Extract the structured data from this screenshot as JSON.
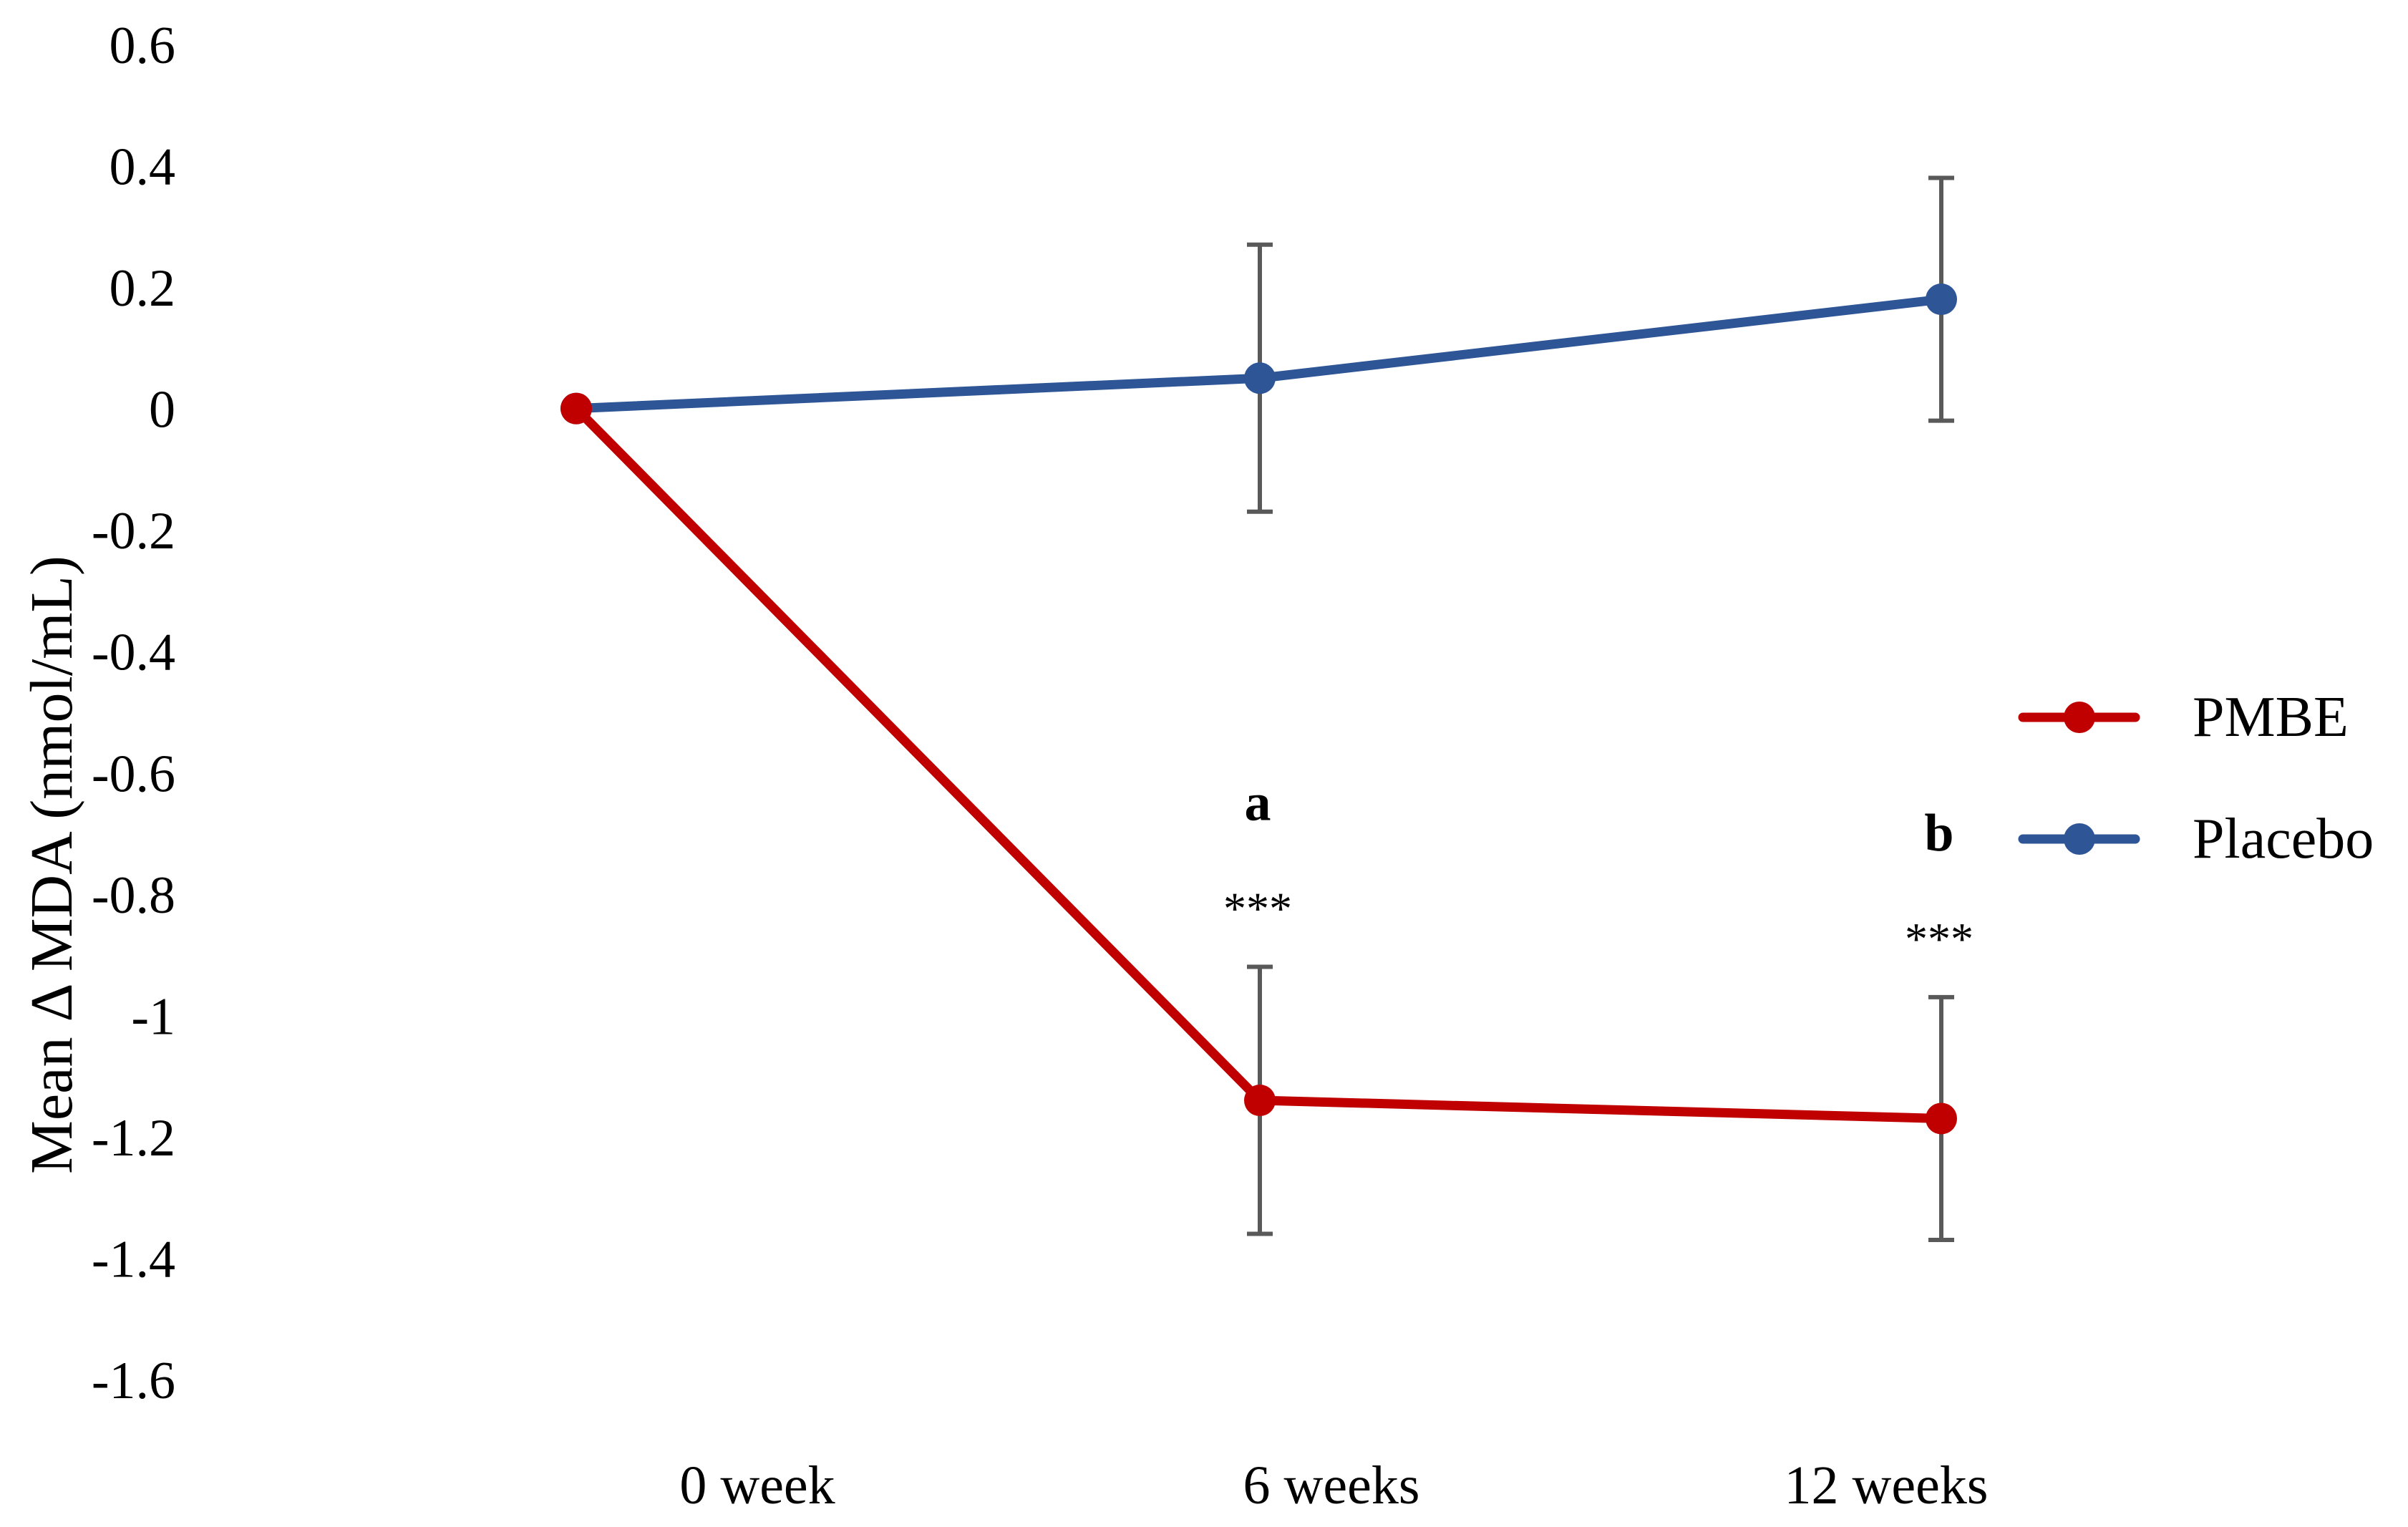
{
  "chart_data": {
    "type": "line",
    "title": "",
    "xlabel": "",
    "ylabel": "Mean Δ MDA (nmol/mL)",
    "categories": [
      "0 week",
      "6 weeks",
      "12 weeks"
    ],
    "ylim": [
      -1.6,
      0.6
    ],
    "yticks": [
      0.6,
      0.4,
      0.2,
      0,
      -0.2,
      -0.4,
      -0.6,
      -0.8,
      -1,
      -1.2,
      -1.4,
      -1.6
    ],
    "ytick_labels": [
      "0.6",
      "0.4",
      "0.2",
      "0",
      "-0.2",
      "-0.4",
      "-0.6",
      "-0.8",
      "-1",
      "-1.2",
      "-1.4",
      "-1.6"
    ],
    "grid": false,
    "legend_position": "right",
    "series": [
      {
        "name": "PMBE",
        "color": "#c00000",
        "values": [
          0,
          -1.14,
          -1.17
        ],
        "error": [
          null,
          0.22,
          0.2
        ],
        "annotations": [
          null,
          {
            "letter": "a",
            "stars": "***"
          },
          {
            "letter": "b",
            "stars": "***"
          }
        ]
      },
      {
        "name": "Placebo",
        "color": "#2e5596",
        "values": [
          0,
          0.05,
          0.18
        ],
        "error": [
          null,
          0.22,
          0.2
        ]
      }
    ],
    "error_bar_color": "#595959"
  }
}
